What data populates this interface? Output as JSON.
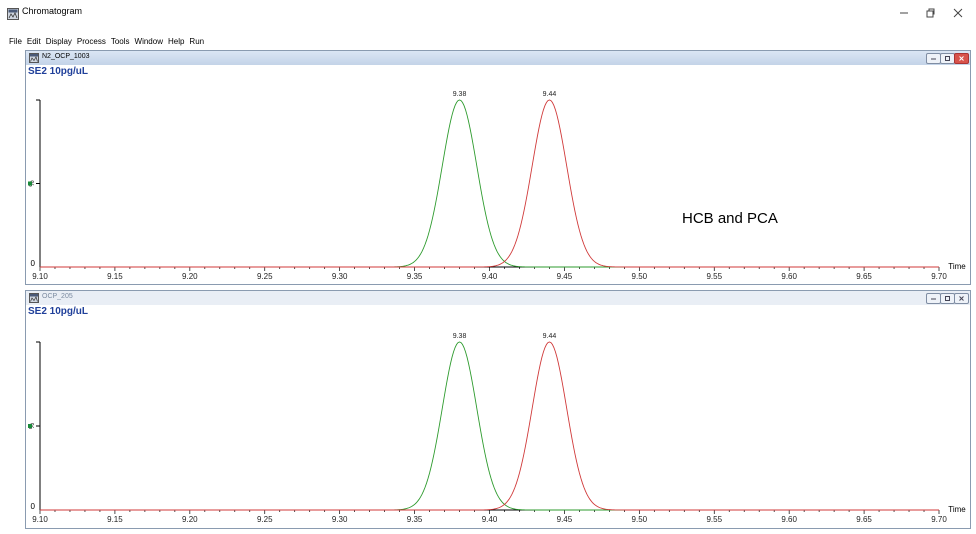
{
  "window": {
    "title": "Chromatogram",
    "icons": {
      "app": "chromatogram-app-icon",
      "minimize": "minimize-icon",
      "maximize": "maximize-icon",
      "close": "close-icon"
    }
  },
  "menu": [
    "File",
    "Edit",
    "Display",
    "Process",
    "Tools",
    "Window",
    "Help",
    "Run"
  ],
  "panels": [
    {
      "name": "N2_OCP_1003",
      "label": "SE2 10pg/uL",
      "active": true
    },
    {
      "name": "OCP_205",
      "label": "SE2 10pg/uL",
      "active": false
    }
  ],
  "annotation": "HCB and PCA",
  "chart_data": [
    {
      "type": "line",
      "xlabel": "Time",
      "ylabel": "%",
      "xlim": [
        9.1,
        9.7
      ],
      "ylim": [
        0,
        100
      ],
      "x_ticks": [
        "9.10",
        "9.15",
        "9.20",
        "9.25",
        "9.30",
        "9.35",
        "9.40",
        "9.45",
        "9.50",
        "9.55",
        "9.60",
        "9.65",
        "9.70"
      ],
      "y_ticks": [
        "0"
      ],
      "series": [
        {
          "color": "#2e9b2e",
          "peak_x": 9.38,
          "peak_label": "9.38",
          "peak_y": 100
        },
        {
          "color": "#d03a3a",
          "peak_x": 9.44,
          "peak_label": "9.44",
          "peak_y": 100
        }
      ]
    },
    {
      "type": "line",
      "xlabel": "Time",
      "ylabel": "%",
      "xlim": [
        9.1,
        9.7
      ],
      "ylim": [
        0,
        100
      ],
      "x_ticks": [
        "9.10",
        "9.15",
        "9.20",
        "9.25",
        "9.30",
        "9.35",
        "9.40",
        "9.45",
        "9.50",
        "9.55",
        "9.60",
        "9.65",
        "9.70"
      ],
      "y_ticks": [
        "0"
      ],
      "series": [
        {
          "color": "#2e9b2e",
          "peak_x": 9.38,
          "peak_label": "9.38",
          "peak_y": 100
        },
        {
          "color": "#d03a3a",
          "peak_x": 9.44,
          "peak_label": "9.44",
          "peak_y": 100
        }
      ]
    }
  ]
}
